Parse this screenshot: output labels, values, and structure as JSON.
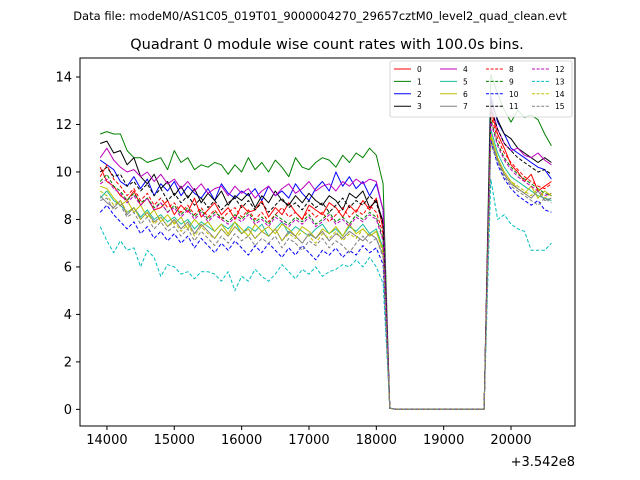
{
  "chart_data": {
    "type": "line",
    "suptitle": "Data file: modeM0/AS1C05_019T01_9000004270_29657cztM0_level2_quad_clean.evt",
    "title": "Quadrant 0 module wise count rates with 100.0s bins.",
    "xlabel": "",
    "ylabel": "",
    "x_offset_label": "+3.542e8",
    "xlim": [
      13600,
      20950
    ],
    "ylim": [
      -0.7,
      14.8
    ],
    "xticks": [
      14000,
      15000,
      16000,
      17000,
      18000,
      19000,
      20000
    ],
    "yticks": [
      0,
      2,
      4,
      6,
      8,
      10,
      12,
      14
    ],
    "grid": false,
    "legend_position": "top-right",
    "x": [
      13900,
      14000,
      14100,
      14200,
      14300,
      14400,
      14500,
      14600,
      14700,
      14800,
      14900,
      15000,
      15100,
      15200,
      15300,
      15400,
      15500,
      15600,
      15700,
      15800,
      15900,
      16000,
      16100,
      16200,
      16300,
      16400,
      16500,
      16600,
      16700,
      16800,
      16900,
      17000,
      17100,
      17200,
      17300,
      17400,
      17500,
      17600,
      17700,
      17800,
      17900,
      18000,
      18100,
      18200,
      18300,
      18400,
      18500,
      18600,
      18700,
      18800,
      18900,
      19000,
      19100,
      19200,
      19300,
      19400,
      19500,
      19600,
      19700,
      19800,
      19900,
      20000,
      20100,
      20200,
      20300,
      20400,
      20500,
      20600
    ],
    "series": [
      {
        "name": "0",
        "color": "#ff0000",
        "dash": "solid",
        "values": [
          10.2,
          9.6,
          9.4,
          9.0,
          8.8,
          9.2,
          8.6,
          8.9,
          8.4,
          8.5,
          8.8,
          8.2,
          8.6,
          8.3,
          8.9,
          8.1,
          8.4,
          8.7,
          8.2,
          8.5,
          8.0,
          8.6,
          8.3,
          8.4,
          8.8,
          8.1,
          8.5,
          8.2,
          8.7,
          8.3,
          8.0,
          8.6,
          8.4,
          8.2,
          8.7,
          8.5,
          8.1,
          8.6,
          8.3,
          8.8,
          8.4,
          8.9,
          7.6,
          0.05,
          0,
          0,
          0,
          0,
          0,
          0,
          0,
          0,
          0,
          0,
          0,
          0,
          0,
          0,
          12.6,
          11.6,
          11.0,
          10.3,
          10.0,
          9.6,
          9.9,
          9.2,
          9.4,
          9.6
        ]
      },
      {
        "name": "1",
        "color": "#008000",
        "dash": "solid",
        "values": [
          11.6,
          11.7,
          11.6,
          11.6,
          10.9,
          10.6,
          10.6,
          10.4,
          10.5,
          10.6,
          10.1,
          10.9,
          10.4,
          10.6,
          10.1,
          10.3,
          10.2,
          10.4,
          10.3,
          9.9,
          10.3,
          10.0,
          10.6,
          10.1,
          10.4,
          10.0,
          10.5,
          10.2,
          9.8,
          10.6,
          10.2,
          10.1,
          10.4,
          10.6,
          10.5,
          10.2,
          10.7,
          10.4,
          10.8,
          10.6,
          11.0,
          10.7,
          9.5,
          0.05,
          0,
          0,
          0,
          0,
          0,
          0,
          0,
          0,
          0,
          0,
          0,
          0,
          0,
          0,
          14.1,
          13.3,
          12.6,
          12.1,
          12.6,
          12.3,
          12.4,
          12.2,
          11.6,
          11.1
        ]
      },
      {
        "name": "2",
        "color": "#0000ff",
        "dash": "solid",
        "values": [
          10.5,
          10.3,
          10.1,
          9.6,
          9.4,
          9.8,
          9.3,
          9.7,
          9.0,
          9.5,
          9.2,
          9.6,
          9.0,
          9.4,
          9.1,
          8.9,
          9.3,
          8.8,
          9.5,
          9.1,
          8.9,
          9.2,
          9.0,
          9.3,
          8.8,
          9.4,
          9.0,
          9.2,
          8.9,
          9.5,
          9.1,
          8.8,
          9.3,
          9.6,
          9.2,
          10.0,
          9.4,
          9.8,
          9.3,
          9.6,
          9.0,
          9.5,
          8.4,
          0.05,
          0,
          0,
          0,
          0,
          0,
          0,
          0,
          0,
          0,
          0,
          0,
          0,
          0,
          0,
          13.2,
          12.1,
          11.6,
          11.0,
          10.8,
          10.6,
          10.4,
          10.2,
          10.1,
          9.7
        ]
      },
      {
        "name": "3",
        "color": "#000000",
        "dash": "solid",
        "values": [
          11.2,
          11.3,
          10.8,
          10.9,
          10.3,
          10.6,
          9.8,
          9.5,
          9.9,
          9.3,
          9.6,
          9.0,
          9.4,
          8.9,
          9.3,
          8.7,
          9.1,
          8.8,
          9.2,
          8.6,
          9.0,
          8.8,
          9.1,
          8.5,
          9.0,
          8.7,
          9.2,
          8.8,
          8.6,
          9.0,
          8.7,
          9.1,
          8.8,
          8.6,
          9.0,
          8.8,
          8.4,
          9.1,
          8.9,
          9.2,
          8.5,
          8.8,
          7.9,
          0.05,
          0,
          0,
          0,
          0,
          0,
          0,
          0,
          0,
          0,
          0,
          0,
          0,
          0,
          0,
          13.0,
          12.2,
          11.6,
          11.4,
          11.0,
          10.8,
          10.6,
          10.4,
          10.6,
          10.4
        ]
      },
      {
        "name": "4",
        "color": "#bf00bf",
        "dash": "solid",
        "values": [
          10.6,
          11.0,
          10.5,
          10.2,
          10.0,
          10.1,
          9.8,
          10.0,
          9.6,
          9.9,
          9.5,
          9.7,
          9.3,
          9.6,
          9.2,
          9.5,
          9.1,
          9.3,
          9.4,
          9.0,
          9.4,
          9.1,
          9.3,
          8.9,
          9.2,
          9.4,
          9.0,
          9.3,
          9.5,
          9.1,
          9.3,
          9.6,
          9.2,
          9.4,
          9.5,
          9.2,
          9.6,
          9.4,
          9.7,
          9.5,
          9.7,
          9.6,
          8.4,
          0.05,
          0,
          0,
          0,
          0,
          0,
          0,
          0,
          0,
          0,
          0,
          0,
          0,
          0,
          0,
          12.8,
          11.8,
          11.2,
          10.9,
          11.0,
          10.7,
          10.6,
          10.8,
          10.5,
          10.3
        ]
      },
      {
        "name": "5",
        "color": "#1abc9c",
        "dash": "solid",
        "values": [
          8.9,
          9.2,
          8.8,
          8.6,
          8.3,
          8.5,
          8.1,
          8.4,
          8.0,
          8.2,
          7.9,
          8.1,
          7.8,
          8.0,
          7.6,
          7.9,
          7.7,
          7.5,
          7.8,
          7.6,
          7.9,
          7.4,
          7.7,
          7.5,
          7.8,
          7.3,
          7.6,
          7.9,
          7.4,
          7.7,
          7.5,
          7.3,
          7.6,
          7.8,
          7.4,
          7.6,
          7.3,
          7.7,
          7.5,
          7.8,
          7.4,
          7.6,
          6.8,
          0.05,
          0,
          0,
          0,
          0,
          0,
          0,
          0,
          0,
          0,
          0,
          0,
          0,
          0,
          0,
          11.8,
          10.8,
          10.2,
          9.8,
          9.6,
          9.4,
          9.2,
          9.0,
          8.9,
          8.8
        ]
      },
      {
        "name": "6",
        "color": "#bfbf00",
        "dash": "solid",
        "values": [
          9.4,
          9.3,
          8.9,
          8.6,
          8.8,
          8.3,
          8.6,
          8.1,
          8.4,
          7.9,
          8.2,
          7.8,
          8.1,
          7.6,
          8.0,
          7.7,
          7.9,
          7.5,
          7.8,
          7.4,
          7.9,
          7.6,
          7.3,
          7.8,
          7.5,
          7.7,
          7.4,
          7.8,
          7.6,
          7.3,
          7.7,
          7.5,
          7.2,
          7.6,
          7.4,
          7.7,
          7.3,
          7.8,
          7.4,
          7.6,
          7.3,
          7.5,
          6.7,
          0.05,
          0,
          0,
          0,
          0,
          0,
          0,
          0,
          0,
          0,
          0,
          0,
          0,
          0,
          0,
          11.6,
          10.6,
          10.0,
          9.6,
          9.3,
          9.1,
          9.4,
          8.9,
          9.2,
          9.0
        ]
      },
      {
        "name": "7",
        "color": "#7f7f7f",
        "dash": "solid",
        "values": [
          9.0,
          8.7,
          8.5,
          8.8,
          8.2,
          8.5,
          8.0,
          8.3,
          7.9,
          8.1,
          7.7,
          8.0,
          7.6,
          7.9,
          7.4,
          7.8,
          7.5,
          7.2,
          7.6,
          7.3,
          7.7,
          7.4,
          7.6,
          7.2,
          7.5,
          7.3,
          7.6,
          7.1,
          7.5,
          7.3,
          7.0,
          7.4,
          7.2,
          7.5,
          7.1,
          7.4,
          7.2,
          7.5,
          7.3,
          7.1,
          7.4,
          7.2,
          6.5,
          0.05,
          0,
          0,
          0,
          0,
          0,
          0,
          0,
          0,
          0,
          0,
          0,
          0,
          0,
          0,
          11.4,
          10.5,
          9.9,
          9.5,
          9.3,
          9.1,
          8.9,
          9.2,
          8.8,
          8.9
        ]
      },
      {
        "name": "8",
        "color": "#ff0000",
        "dash": "dashed",
        "values": [
          9.8,
          10.3,
          9.7,
          9.4,
          9.0,
          9.3,
          8.8,
          9.1,
          8.6,
          8.9,
          8.5,
          8.7,
          8.3,
          8.6,
          8.2,
          8.5,
          8.1,
          8.4,
          8.0,
          8.3,
          8.5,
          8.1,
          8.4,
          8.0,
          8.3,
          7.9,
          8.2,
          8.5,
          8.1,
          8.3,
          8.0,
          8.4,
          8.1,
          8.3,
          7.9,
          8.2,
          8.5,
          8.1,
          8.4,
          8.2,
          8.6,
          8.3,
          7.4,
          0.05,
          0,
          0,
          0,
          0,
          0,
          0,
          0,
          0,
          0,
          0,
          0,
          0,
          0,
          0,
          12.4,
          11.4,
          10.8,
          10.4,
          10.1,
          9.8,
          9.6,
          9.4,
          9.3,
          9.5
        ]
      },
      {
        "name": "9",
        "color": "#008000",
        "dash": "dashed",
        "values": [
          9.6,
          9.9,
          9.4,
          9.2,
          8.8,
          9.1,
          8.7,
          8.9,
          8.5,
          8.7,
          8.3,
          8.6,
          8.2,
          8.5,
          8.1,
          8.4,
          8.0,
          8.3,
          8.1,
          7.9,
          8.2,
          8.0,
          8.3,
          7.9,
          8.1,
          7.8,
          8.2,
          8.0,
          7.8,
          8.1,
          7.9,
          8.2,
          7.8,
          8.0,
          8.3,
          7.9,
          8.1,
          7.8,
          8.2,
          8.0,
          8.3,
          8.1,
          7.2,
          0.05,
          0,
          0,
          0,
          0,
          0,
          0,
          0,
          0,
          0,
          0,
          0,
          0,
          0,
          0,
          12.2,
          11.2,
          10.6,
          10.2,
          9.9,
          9.7,
          9.5,
          9.3,
          9.1,
          9.0
        ]
      },
      {
        "name": "10",
        "color": "#0000ff",
        "dash": "dashed",
        "values": [
          8.3,
          8.6,
          8.2,
          7.9,
          7.6,
          7.9,
          7.4,
          7.7,
          7.2,
          7.5,
          7.1,
          7.4,
          7.0,
          7.3,
          6.8,
          7.2,
          6.9,
          6.6,
          7.0,
          6.7,
          7.1,
          6.8,
          6.5,
          6.9,
          6.6,
          7.0,
          6.7,
          6.4,
          6.8,
          6.5,
          6.9,
          6.6,
          6.3,
          6.7,
          6.5,
          6.8,
          6.4,
          6.7,
          6.5,
          6.9,
          6.6,
          6.8,
          6.1,
          0.05,
          0,
          0,
          0,
          0,
          0,
          0,
          0,
          0,
          0,
          0,
          0,
          0,
          0,
          0,
          11.3,
          10.3,
          9.7,
          9.3,
          9.0,
          8.8,
          8.6,
          8.8,
          8.4,
          8.3
        ]
      },
      {
        "name": "11",
        "color": "#000000",
        "dash": "dashed",
        "values": [
          10.0,
          10.2,
          9.8,
          9.9,
          9.4,
          9.6,
          9.2,
          9.5,
          9.0,
          9.3,
          8.8,
          9.1,
          8.7,
          9.0,
          8.6,
          8.9,
          8.5,
          8.8,
          8.4,
          8.7,
          8.9,
          8.5,
          8.8,
          8.4,
          8.7,
          8.3,
          8.6,
          8.9,
          8.5,
          8.7,
          8.4,
          8.8,
          8.5,
          8.7,
          8.3,
          8.6,
          8.9,
          8.5,
          8.8,
          8.6,
          9.0,
          8.7,
          7.8,
          0.05,
          0,
          0,
          0,
          0,
          0,
          0,
          0,
          0,
          0,
          0,
          0,
          0,
          0,
          0,
          12.7,
          11.8,
          11.2,
          10.9,
          10.6,
          10.4,
          10.2,
          10.0,
          10.1,
          9.9
        ]
      },
      {
        "name": "12",
        "color": "#bf00bf",
        "dash": "dashed",
        "values": [
          9.5,
          9.7,
          9.3,
          9.1,
          8.7,
          9.0,
          8.6,
          8.9,
          8.4,
          8.7,
          8.3,
          8.5,
          8.1,
          8.4,
          8.0,
          8.3,
          7.9,
          8.2,
          8.0,
          7.8,
          8.1,
          7.9,
          8.2,
          7.8,
          8.0,
          7.7,
          8.1,
          7.9,
          7.7,
          8.0,
          7.8,
          8.1,
          7.7,
          7.9,
          8.2,
          7.8,
          8.0,
          7.7,
          8.1,
          7.9,
          8.2,
          8.0,
          7.1,
          0.05,
          0,
          0,
          0,
          0,
          0,
          0,
          0,
          0,
          0,
          0,
          0,
          0,
          0,
          0,
          12.1,
          11.1,
          10.5,
          10.1,
          9.8,
          9.6,
          9.4,
          9.2,
          9.0,
          9.1
        ]
      },
      {
        "name": "13",
        "color": "#00bfbf",
        "dash": "dashed",
        "values": [
          7.7,
          7.1,
          6.6,
          7.1,
          6.7,
          6.8,
          6.0,
          6.7,
          6.4,
          5.6,
          6.1,
          6.0,
          5.7,
          5.8,
          5.5,
          5.8,
          5.8,
          5.7,
          5.4,
          5.8,
          5.0,
          5.6,
          5.4,
          5.9,
          5.6,
          5.4,
          5.7,
          6.1,
          5.8,
          5.5,
          5.9,
          5.7,
          6.0,
          5.6,
          5.8,
          5.9,
          6.1,
          6.0,
          6.3,
          6.0,
          6.4,
          6.0,
          5.3,
          0.05,
          0,
          0,
          0,
          0,
          0,
          0,
          0,
          0,
          0,
          0,
          0,
          0,
          0,
          0,
          9.7,
          8.0,
          8.2,
          7.8,
          7.6,
          7.5,
          6.7,
          6.7,
          6.7,
          7.0
        ]
      },
      {
        "name": "14",
        "color": "#bfbf00",
        "dash": "dashed",
        "values": [
          9.2,
          9.0,
          8.6,
          8.8,
          8.3,
          8.5,
          8.0,
          8.3,
          7.8,
          8.1,
          7.7,
          7.9,
          7.5,
          7.8,
          7.3,
          7.7,
          7.4,
          7.2,
          7.6,
          7.3,
          7.7,
          7.4,
          7.6,
          7.2,
          7.5,
          7.3,
          7.6,
          7.1,
          7.4,
          7.2,
          7.5,
          7.3,
          7.0,
          7.4,
          7.2,
          7.5,
          7.1,
          7.4,
          7.2,
          7.6,
          7.3,
          7.5,
          6.6,
          0.05,
          0,
          0,
          0,
          0,
          0,
          0,
          0,
          0,
          0,
          0,
          0,
          0,
          0,
          0,
          11.5,
          10.6,
          10.0,
          9.6,
          9.4,
          9.2,
          9.0,
          9.3,
          8.9,
          9.1
        ]
      },
      {
        "name": "15",
        "color": "#7f7f7f",
        "dash": "dashed",
        "values": [
          8.8,
          8.9,
          8.4,
          8.6,
          8.1,
          8.3,
          7.8,
          8.1,
          7.6,
          7.9,
          7.5,
          7.7,
          7.3,
          7.6,
          7.1,
          7.5,
          7.2,
          6.9,
          7.3,
          7.0,
          7.4,
          7.1,
          7.3,
          6.9,
          7.2,
          7.0,
          7.3,
          6.8,
          7.2,
          7.0,
          6.7,
          7.1,
          6.9,
          7.2,
          6.8,
          7.1,
          6.9,
          6.6,
          7.0,
          7.3,
          7.0,
          7.2,
          6.4,
          0.05,
          0,
          0,
          0,
          0,
          0,
          0,
          0,
          0,
          0,
          0,
          0,
          0,
          0,
          0,
          11.2,
          10.4,
          9.8,
          9.4,
          9.2,
          9.0,
          8.8,
          8.6,
          8.9,
          8.7
        ]
      }
    ]
  }
}
